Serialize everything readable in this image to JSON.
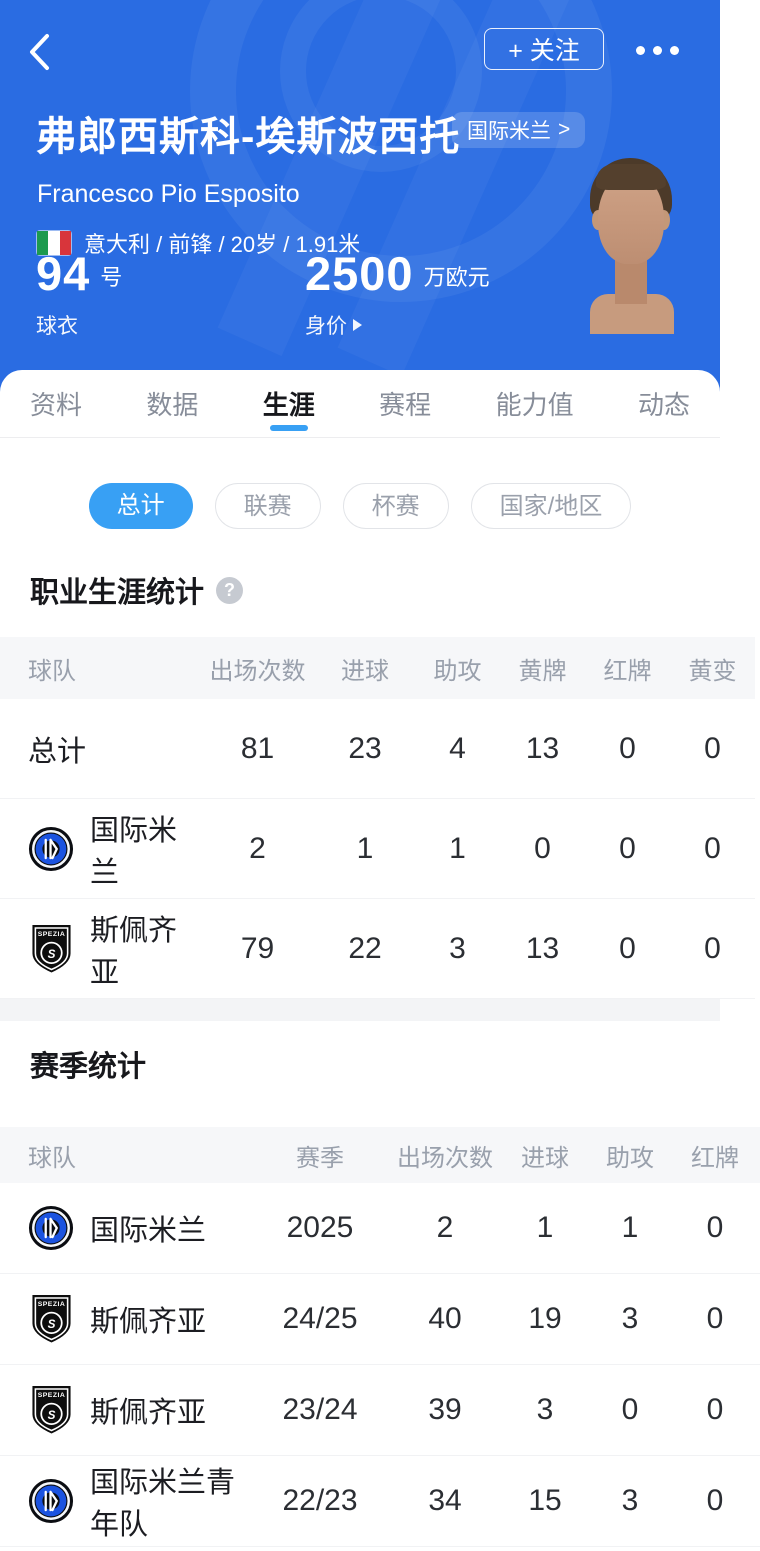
{
  "colors": {
    "hero_blue": "#2a6ce2",
    "accent_blue": "#38a0f4",
    "badge_bg": "rgba(255,255,255,0.17)",
    "table_header_bg": "#f6f7f9",
    "divider": "#f1f2f4"
  },
  "header": {
    "follow_label": "+ 关注",
    "player_name": "弗郎西斯科-埃斯波西托",
    "badge": {
      "label": "国际米兰",
      "arrow": ">"
    },
    "player_name_en": "Francesco Pio Esposito",
    "nationality_flag": "italy-flag",
    "info_line": "意大利 / 前锋 / 20岁 / 1.91米",
    "jersey": {
      "number": "94",
      "unit": "号",
      "label": "球衣"
    },
    "value": {
      "number": "2500",
      "unit": "万欧元",
      "label": "身价"
    }
  },
  "tabs": [
    {
      "label": "资料",
      "active": false
    },
    {
      "label": "数据",
      "active": false
    },
    {
      "label": "生涯",
      "active": true
    },
    {
      "label": "赛程",
      "active": false
    },
    {
      "label": "能力值",
      "active": false
    },
    {
      "label": "动态",
      "active": false
    }
  ],
  "filters": [
    {
      "label": "总计",
      "active": true
    },
    {
      "label": "联赛",
      "active": false
    },
    {
      "label": "杯赛",
      "active": false
    },
    {
      "label": "国家/地区",
      "active": false
    }
  ],
  "career_section": {
    "title": "职业生涯统计",
    "help_icon": "?",
    "columns": [
      "球队",
      "出场次数",
      "进球",
      "助攻",
      "黄牌",
      "红牌",
      "黄变"
    ],
    "rows": [
      {
        "team": "总计",
        "logo": "none",
        "values": [
          "81",
          "23",
          "4",
          "13",
          "0",
          "0"
        ]
      },
      {
        "team": "国际米兰",
        "logo": "inter",
        "values": [
          "2",
          "1",
          "1",
          "0",
          "0",
          "0"
        ]
      },
      {
        "team": "斯佩齐亚",
        "logo": "spezia",
        "values": [
          "79",
          "22",
          "3",
          "13",
          "0",
          "0"
        ]
      }
    ]
  },
  "season_section": {
    "title": "赛季统计",
    "columns": [
      "球队",
      "赛季",
      "出场次数",
      "进球",
      "助攻",
      "红牌"
    ],
    "rows": [
      {
        "team": "国际米兰",
        "logo": "inter",
        "season": "2025",
        "values": [
          "2",
          "1",
          "1",
          "0"
        ]
      },
      {
        "team": "斯佩齐亚",
        "logo": "spezia",
        "season": "24/25",
        "values": [
          "40",
          "19",
          "3",
          "0"
        ]
      },
      {
        "team": "斯佩齐亚",
        "logo": "spezia",
        "season": "23/24",
        "values": [
          "39",
          "3",
          "0",
          "0"
        ]
      },
      {
        "team": "国际米兰青年队",
        "logo": "inter",
        "season": "22/23",
        "values": [
          "34",
          "15",
          "3",
          "0"
        ]
      }
    ]
  }
}
